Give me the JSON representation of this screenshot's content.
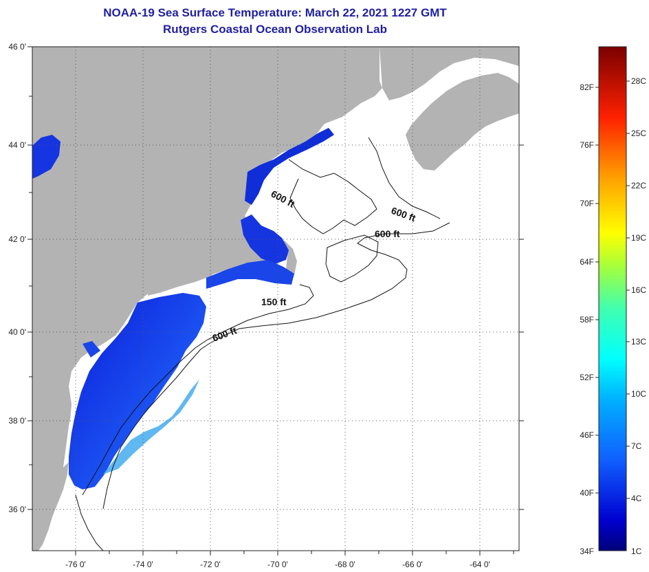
{
  "header": {
    "title": "NOAA-19 Sea Surface Temperature:  March 22, 2021 1227 GMT",
    "subtitle": "Rutgers Coastal Ocean Observation Lab"
  },
  "axes": {
    "lat_labels": [
      "46 0'",
      "44 0'",
      "42 0'",
      "40 0'",
      "38 0'",
      "36 0'"
    ],
    "lon_labels": [
      "-76 0'",
      "-74 0'",
      "-72 0'",
      "-70 0'",
      "-68 0'",
      "-66 0'",
      "-64 0'"
    ]
  },
  "contours": [
    {
      "label": "600 ft"
    },
    {
      "label": "600 ft"
    },
    {
      "label": "600 ft"
    },
    {
      "label": "150 ft"
    },
    {
      "label": "600 ft"
    }
  ],
  "colorbar": {
    "fahrenheit": [
      "82F",
      "76F",
      "70F",
      "64F",
      "58F",
      "52F",
      "46F",
      "40F",
      "34F"
    ],
    "celsius": [
      "28C",
      "25C",
      "22C",
      "19C",
      "16C",
      "13C",
      "10C",
      "7C",
      "4C",
      "1C"
    ]
  },
  "colors": {
    "land": "#b3b3b3",
    "ocean": "#ffffff",
    "title": "#1f1fa0",
    "sst_cold": "#0a1fd0",
    "sst_warm": "#2f7cf0"
  }
}
